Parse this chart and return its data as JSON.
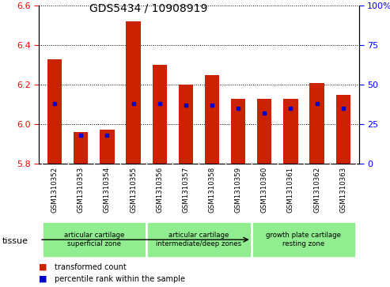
{
  "title": "GDS5434 / 10908919",
  "samples": [
    "GSM1310352",
    "GSM1310353",
    "GSM1310354",
    "GSM1310355",
    "GSM1310356",
    "GSM1310357",
    "GSM1310358",
    "GSM1310359",
    "GSM1310360",
    "GSM1310361",
    "GSM1310362",
    "GSM1310363"
  ],
  "bar_values": [
    6.33,
    5.96,
    5.97,
    6.52,
    6.3,
    6.2,
    6.25,
    6.13,
    6.13,
    6.13,
    6.21,
    6.15
  ],
  "percentile_values": [
    38,
    18,
    18,
    38,
    38,
    37,
    37,
    35,
    32,
    35,
    38,
    35
  ],
  "y_min": 5.8,
  "y_max": 6.6,
  "y_ticks": [
    5.8,
    6.0,
    6.2,
    6.4,
    6.6
  ],
  "y2_ticks": [
    0,
    25,
    50,
    75,
    100
  ],
  "bar_color": "#cc2200",
  "blue_color": "#0000cc",
  "plot_bg_color": "#ffffff",
  "xtick_bg_color": "#d3d3d3",
  "tissue_group_color": "#90ee90",
  "tissue_groups": [
    {
      "label": "articular cartilage\nsuperficial zone",
      "start": 0,
      "end": 4
    },
    {
      "label": "articular cartilage\nintermediate/deep zones",
      "start": 4,
      "end": 8
    },
    {
      "label": "growth plate cartilage\nresting zone",
      "start": 8,
      "end": 12
    }
  ],
  "legend_red": "transformed count",
  "legend_blue": "percentile rank within the sample",
  "tissue_label": "tissue",
  "bar_width": 0.55
}
